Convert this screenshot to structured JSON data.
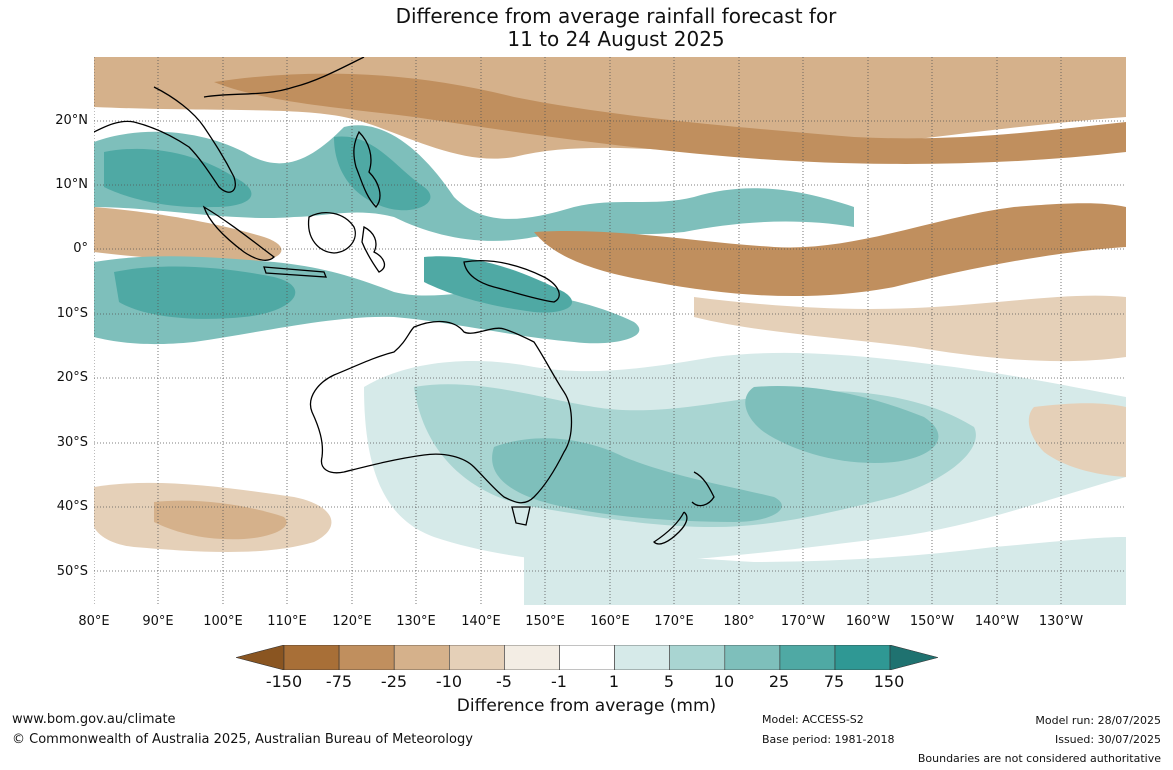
{
  "title": {
    "line1": "Difference from average rainfall forecast for",
    "line2": "11 to 24 August 2025"
  },
  "lat_labels": [
    "20°N",
    "10°N",
    "0°",
    "10°S",
    "20°S",
    "30°S",
    "40°S",
    "50°S"
  ],
  "lon_labels": [
    "80°E",
    "90°E",
    "100°E",
    "110°E",
    "120°E",
    "130°E",
    "140°E",
    "150°E",
    "160°E",
    "170°E",
    "180°",
    "170°W",
    "160°W",
    "150°W",
    "140°W",
    "130°W"
  ],
  "legend": {
    "tick_labels": [
      "-150",
      "-75",
      "-25",
      "-10",
      "-5",
      "-1",
      "1",
      "5",
      "10",
      "25",
      "75",
      "150"
    ],
    "colors": [
      "#a86f37",
      "#c08f5e",
      "#d5b18b",
      "#e5d0b8",
      "#f3ede4",
      "#ffffff",
      "#d6eae9",
      "#a9d5d2",
      "#7ebfbb",
      "#4fa9a4",
      "#2f9894"
    ],
    "extend_low_color": "#8a5521",
    "extend_high_color": "#1f7270",
    "title": "Difference from average (mm)"
  },
  "footer": {
    "url": "www.bom.gov.au/climate",
    "copyright": "© Commonwealth of Australia 2025, Australian Bureau of Meteorology",
    "model": "Model: ACCESS-S2",
    "base_period": "Base period: 1981-2018",
    "model_run": "Model run: 28/07/2025",
    "issued": "Issued: 30/07/2025",
    "disclaimer": "Boundaries are not considered authoritative"
  }
}
